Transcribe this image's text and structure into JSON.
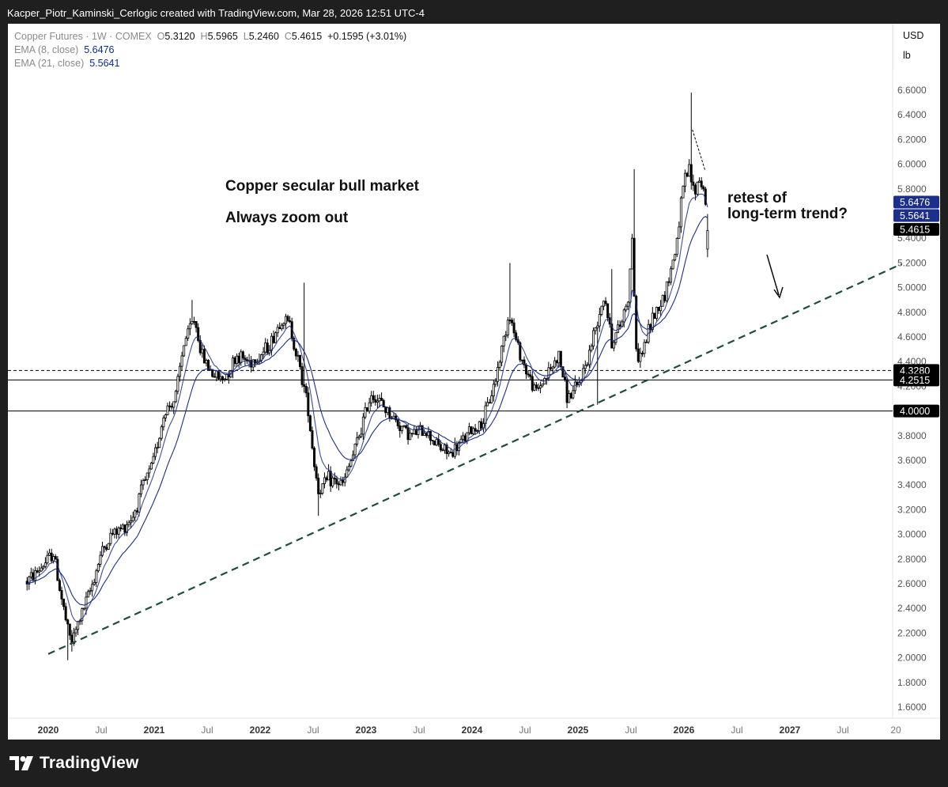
{
  "header": {
    "credit": "Kacper_Piotr_Kaminski_Cerlogic created with TradingView.com, Mar 28, 2026 12:51 UTC-4"
  },
  "legend": {
    "symbol": "Copper Futures · 1W · COMEX",
    "o_label": "O",
    "o_value": "5.3120",
    "h_label": "H",
    "h_value": "5.5965",
    "l_label": "L",
    "l_value": "5.2460",
    "c_label": "C",
    "c_value": "5.4615",
    "change": "+0.1595 (+3.01%)",
    "ema8_label": "EMA (8, close)",
    "ema8_value": "5.6476",
    "ema21_label": "EMA (21, close)",
    "ema21_value": "5.5641"
  },
  "units": {
    "currency": "USD",
    "unit": "lb"
  },
  "annotations": {
    "title": "Copper secular bull market",
    "subtitle": "Always zoom out",
    "retest_line1": "retest of",
    "retest_line2": "long-term trend?"
  },
  "footer": {
    "brand": "TradingView"
  },
  "colors": {
    "candle": "#000000",
    "ema": "#1c2f8a",
    "trendline": "#1e4d3a",
    "ema_badge": "#1c2f8a",
    "price_badge": "#000000"
  },
  "chart_data": {
    "type": "candlestick",
    "title": "Copper Futures · 1W · COMEX",
    "ylim": [
      1.5,
      6.75
    ],
    "yticks": [
      "6.6000",
      "6.4000",
      "6.2000",
      "6.0000",
      "5.8000",
      "5.6000",
      "5.4000",
      "5.2000",
      "5.0000",
      "4.8000",
      "4.6000",
      "4.4000",
      "4.2000",
      "4.0000",
      "3.8000",
      "3.6000",
      "3.4000",
      "3.2000",
      "3.0000",
      "2.8000",
      "2.6000",
      "2.4000",
      "2.2000",
      "2.0000",
      "1.8000",
      "1.6000"
    ],
    "xticks": [
      {
        "label": "2020",
        "t": 2020.0
      },
      {
        "label": "Jul",
        "t": 2020.5
      },
      {
        "label": "2021",
        "t": 2021.0
      },
      {
        "label": "Jul",
        "t": 2021.5
      },
      {
        "label": "2022",
        "t": 2022.0
      },
      {
        "label": "Jul",
        "t": 2022.5
      },
      {
        "label": "2023",
        "t": 2023.0
      },
      {
        "label": "Jul",
        "t": 2023.5
      },
      {
        "label": "2024",
        "t": 2024.0
      },
      {
        "label": "Jul",
        "t": 2024.5
      },
      {
        "label": "2025",
        "t": 2025.0
      },
      {
        "label": "Jul",
        "t": 2025.5
      },
      {
        "label": "2026",
        "t": 2026.0
      },
      {
        "label": "Jul",
        "t": 2026.5
      },
      {
        "label": "2027",
        "t": 2027.0
      },
      {
        "label": "Jul",
        "t": 2027.5
      },
      {
        "label": "20",
        "t": 2028.0
      }
    ],
    "xlim": [
      2019.8,
      2028.05
    ],
    "price_waypoints": [
      [
        2019.8,
        2.62
      ],
      [
        2019.9,
        2.7
      ],
      [
        2019.98,
        2.78
      ],
      [
        2020.05,
        2.85
      ],
      [
        2020.1,
        2.6
      ],
      [
        2020.18,
        2.24
      ],
      [
        2020.22,
        2.12
      ],
      [
        2020.3,
        2.32
      ],
      [
        2020.4,
        2.55
      ],
      [
        2020.5,
        2.85
      ],
      [
        2020.6,
        3.0
      ],
      [
        2020.7,
        3.05
      ],
      [
        2020.8,
        3.15
      ],
      [
        2020.9,
        3.4
      ],
      [
        2020.98,
        3.55
      ],
      [
        2021.1,
        4.0
      ],
      [
        2021.2,
        4.1
      ],
      [
        2021.28,
        4.55
      ],
      [
        2021.38,
        4.75
      ],
      [
        2021.45,
        4.45
      ],
      [
        2021.55,
        4.3
      ],
      [
        2021.65,
        4.25
      ],
      [
        2021.78,
        4.45
      ],
      [
        2021.9,
        4.4
      ],
      [
        2022.0,
        4.45
      ],
      [
        2022.1,
        4.55
      ],
      [
        2022.2,
        4.75
      ],
      [
        2022.28,
        4.7
      ],
      [
        2022.36,
        4.4
      ],
      [
        2022.45,
        4.05
      ],
      [
        2022.5,
        3.65
      ],
      [
        2022.55,
        3.35
      ],
      [
        2022.65,
        3.45
      ],
      [
        2022.78,
        3.4
      ],
      [
        2022.9,
        3.7
      ],
      [
        2023.0,
        4.0
      ],
      [
        2023.05,
        4.15
      ],
      [
        2023.15,
        4.05
      ],
      [
        2023.3,
        3.9
      ],
      [
        2023.42,
        3.8
      ],
      [
        2023.55,
        3.85
      ],
      [
        2023.7,
        3.7
      ],
      [
        2023.8,
        3.65
      ],
      [
        2023.9,
        3.75
      ],
      [
        2024.0,
        3.85
      ],
      [
        2024.1,
        3.9
      ],
      [
        2024.22,
        4.25
      ],
      [
        2024.35,
        4.8
      ],
      [
        2024.42,
        4.55
      ],
      [
        2024.5,
        4.35
      ],
      [
        2024.6,
        4.15
      ],
      [
        2024.75,
        4.35
      ],
      [
        2024.82,
        4.45
      ],
      [
        2024.9,
        4.1
      ],
      [
        2025.0,
        4.2
      ],
      [
        2025.1,
        4.45
      ],
      [
        2025.2,
        4.8
      ],
      [
        2025.25,
        4.95
      ],
      [
        2025.32,
        4.55
      ],
      [
        2025.4,
        4.7
      ],
      [
        2025.48,
        4.95
      ],
      [
        2025.52,
        5.55
      ],
      [
        2025.54,
        4.45
      ],
      [
        2025.6,
        4.45
      ],
      [
        2025.7,
        4.75
      ],
      [
        2025.82,
        4.95
      ],
      [
        2025.92,
        5.3
      ],
      [
        2026.0,
        5.85
      ],
      [
        2026.05,
        5.95
      ],
      [
        2026.1,
        5.75
      ],
      [
        2026.14,
        5.9
      ],
      [
        2026.2,
        5.75
      ],
      [
        2026.23,
        5.46
      ]
    ],
    "spikes": [
      {
        "t": 2020.18,
        "low": 1.98
      },
      {
        "t": 2020.23,
        "low": 2.05
      },
      {
        "t": 2022.55,
        "low": 3.15
      },
      {
        "t": 2022.42,
        "high": 5.04
      },
      {
        "t": 2021.35,
        "high": 4.9
      },
      {
        "t": 2024.35,
        "high": 5.2
      },
      {
        "t": 2025.18,
        "low": 4.05
      },
      {
        "t": 2025.53,
        "high": 5.96
      },
      {
        "t": 2026.07,
        "high": 6.58
      },
      {
        "t": 2025.32,
        "high": 5.15
      }
    ],
    "last": {
      "open": 5.312,
      "high": 5.5965,
      "low": 5.246,
      "close": 5.4615
    },
    "ema": [
      {
        "name": "EMA (8, close)",
        "period": 8,
        "last": 5.6476
      },
      {
        "name": "EMA (21, close)",
        "period": 21,
        "last": 5.5641
      }
    ],
    "levels": [
      {
        "value": 4.328,
        "label": "4.3280",
        "style": "dashed"
      },
      {
        "value": 4.2515,
        "label": "4.2515",
        "style": "solid"
      },
      {
        "value": 4.0,
        "label": "4.0000",
        "style": "solid"
      }
    ],
    "trendline": [
      {
        "t": 2020.0,
        "v": 2.03
      },
      {
        "t": 2028.05,
        "v": 5.19
      }
    ],
    "price_badges": [
      {
        "value": 5.6476,
        "label": "5.6476",
        "kind": "ema8"
      },
      {
        "value": 5.5641,
        "label": "5.5641",
        "kind": "ema21"
      },
      {
        "value": 5.4615,
        "label": "5.4615",
        "kind": "close"
      }
    ]
  }
}
